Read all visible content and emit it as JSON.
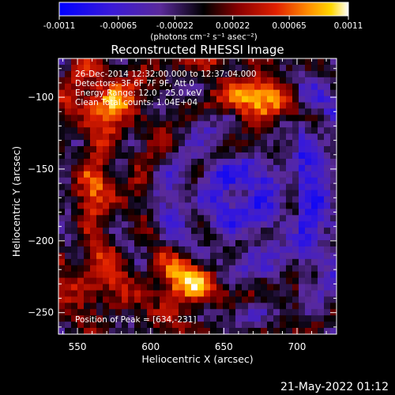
{
  "chart_data": {
    "type": "heatmap",
    "title": "Reconstructed RHESSI Image",
    "xlabel": "Heliocentric X (arcsec)",
    "ylabel": "Heliocentric Y (arcsec)",
    "x_range": [
      537,
      727
    ],
    "y_range": [
      -265,
      -73
    ],
    "x_ticks": [
      550,
      600,
      650,
      700
    ],
    "y_ticks": [
      -100,
      -150,
      -200,
      -250
    ],
    "colorbar": {
      "ticks": [
        -0.0011,
        -0.00065,
        -0.00022,
        0.00022,
        0.00065,
        0.0011
      ],
      "tick_labels": [
        "-0.0011",
        "-0.00065",
        "-0.00022",
        "0.00022",
        "0.00065",
        "0.0011"
      ],
      "unit_label": "(photons cm⁻² s⁻¹ asec⁻²)",
      "range": [
        -0.0011,
        0.0011
      ]
    },
    "annotations": [
      "26-Dec-2014 12:32:00.000 to 12:37:04.000",
      "Detectors: 3F 6F 7F 9F, Att 0",
      "Energy Range: 12.0 - 25.0 keV",
      "Clean    Total counts: 1.04E+04"
    ],
    "peak_label": "Position of Peak = [634,-231]",
    "peak_position": [
      634,
      -231
    ],
    "sources": [
      {
        "x": 624,
        "y": -228,
        "amp": 0.00105,
        "sigma": 15
      },
      {
        "x": 672,
        "y": -103,
        "amp": 0.00095,
        "sigma": 17
      },
      {
        "x": 570,
        "y": -105,
        "amp": 0.0008,
        "sigma": 16
      },
      {
        "x": 565,
        "y": -225,
        "amp": 0.00055,
        "sigma": 15
      },
      {
        "x": 568,
        "y": -165,
        "amp": 0.0006,
        "sigma": 14
      },
      {
        "x": 610,
        "y": -135,
        "amp": 0.0003,
        "sigma": 12
      },
      {
        "x": 640,
        "y": -75,
        "amp": 0.0004,
        "sigma": 10
      },
      {
        "x": 705,
        "y": -245,
        "amp": 0.00025,
        "sigma": 12
      }
    ],
    "negative_center": [
      662,
      -168
    ],
    "grid_cells": 44
  },
  "footer": {
    "timestamp": "21-May-2022 01:12"
  }
}
